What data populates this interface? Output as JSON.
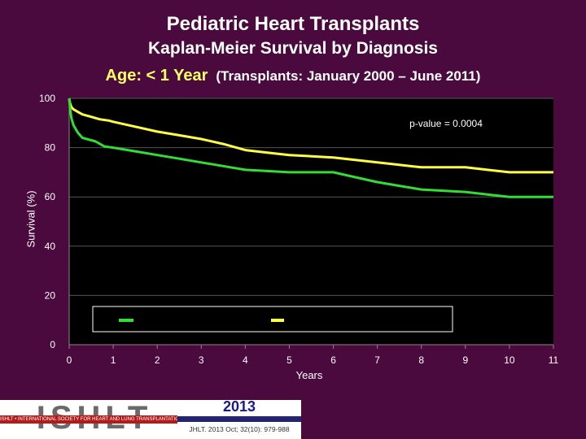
{
  "slide": {
    "title": "Pediatric Heart Transplants",
    "subtitle": "Kaplan-Meier Survival by Diagnosis",
    "age_label": "Age: < 1 Year",
    "period_label": "(Transplants: January 2000 – June 2011)",
    "pvalue": "p-value = 0.0004",
    "footer_logo": "ISHLT",
    "footer_org": "ISHLT • INTERNATIONAL SOCIETY FOR HEART AND LUNG TRANSPLANTATION",
    "footer_year": "2013",
    "footer_citation": "JHLT. 2013 Oct; 32(10): 979-988"
  },
  "colors": {
    "background": "#4a0a3e",
    "plot_bg": "#000000",
    "green": "#33dd33",
    "yellow": "#ffff44"
  },
  "chart_data": {
    "type": "line",
    "xlabel": "Years",
    "ylabel": "Survival (%)",
    "xlim": [
      0,
      11
    ],
    "ylim": [
      0,
      100
    ],
    "xticks": [
      0,
      1,
      2,
      3,
      4,
      5,
      6,
      7,
      8,
      9,
      10,
      11
    ],
    "yticks": [
      0,
      20,
      40,
      60,
      80,
      100
    ],
    "grid": "horizontal",
    "legend": "bottom-center (series names not legible)",
    "series": [
      {
        "color": "#ffff44",
        "x": [
          0,
          0.02,
          0.05,
          0.1,
          0.2,
          0.3,
          0.5,
          0.7,
          0.9,
          1,
          1.5,
          2,
          2.5,
          3,
          3.5,
          4,
          4.5,
          5,
          5.5,
          6,
          6.5,
          7,
          7.5,
          8,
          8.5,
          9,
          9.5,
          10,
          10.5,
          11
        ],
        "y": [
          100,
          98,
          96.5,
          95.5,
          94.5,
          93.5,
          92.5,
          91.5,
          91,
          90.5,
          88.5,
          86.5,
          85,
          83.5,
          81.5,
          79,
          78,
          77,
          76.5,
          76,
          75,
          74,
          73,
          72,
          72,
          72,
          71,
          70,
          70,
          70
        ]
      },
      {
        "color": "#33dd33",
        "x": [
          0,
          0.02,
          0.05,
          0.1,
          0.2,
          0.3,
          0.5,
          0.6,
          0.7,
          0.8,
          1,
          1.5,
          2,
          2.5,
          3,
          3.5,
          4,
          4.5,
          5,
          5.5,
          6,
          6.5,
          7,
          7.5,
          8,
          8.5,
          9,
          9.5,
          10,
          10.5,
          11
        ],
        "y": [
          100,
          96,
          92,
          89,
          86,
          84,
          83,
          82.5,
          81.5,
          80.5,
          80,
          78.5,
          77,
          75.5,
          74,
          72.5,
          71,
          70.5,
          70,
          70,
          70,
          68,
          66,
          64.5,
          63,
          62.5,
          62,
          61,
          60,
          60,
          60
        ]
      }
    ]
  }
}
